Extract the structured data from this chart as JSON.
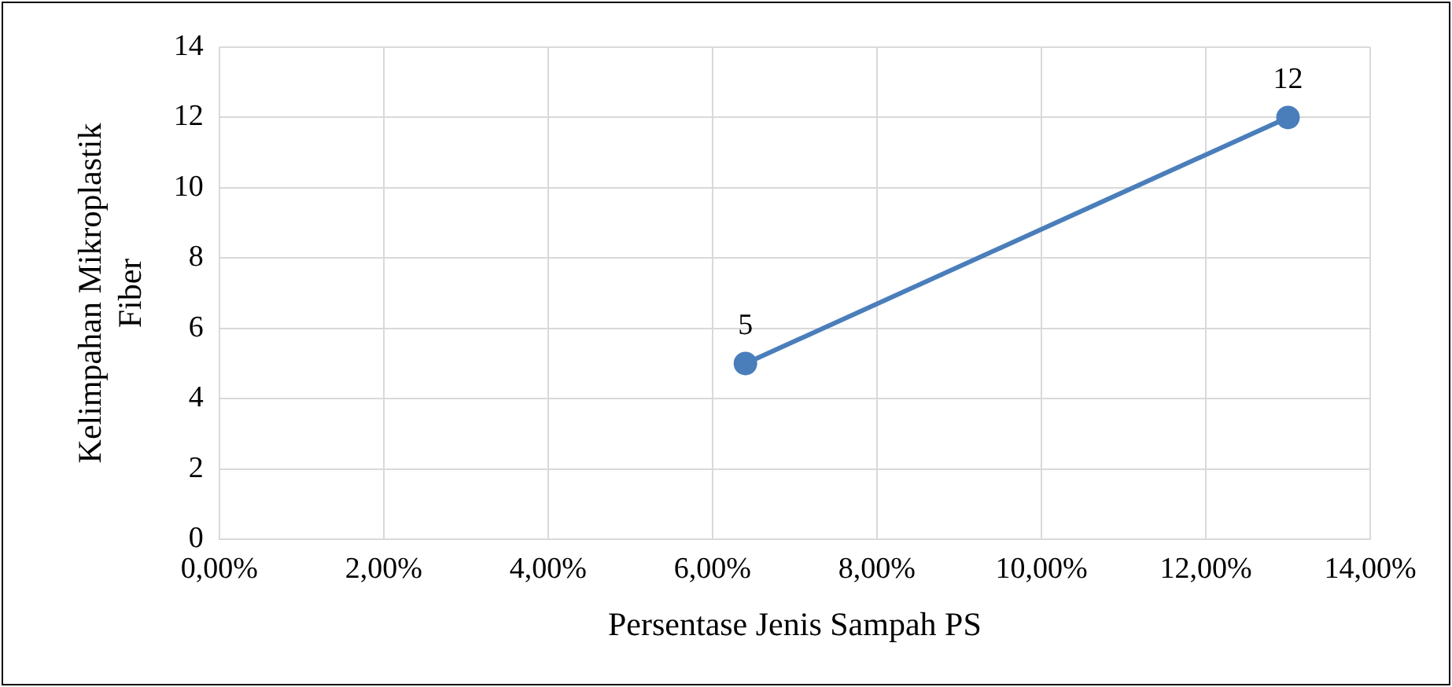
{
  "chart_data": {
    "type": "line",
    "xlabel": "Persentase Jenis Sampah PS",
    "ylabel": "Kelimpahan Mikroplastik Fiber",
    "x": [
      6.4,
      13.0
    ],
    "series": [
      {
        "color": "#4a7ebb",
        "values": [
          5,
          12
        ]
      }
    ],
    "xlim": [
      0,
      14
    ],
    "xticks": [
      {
        "value": 0,
        "label": "0,00%"
      },
      {
        "value": 2,
        "label": "2,00%"
      },
      {
        "value": 4,
        "label": "4,00%"
      },
      {
        "value": 6,
        "label": "6,00%"
      },
      {
        "value": 8,
        "label": "8,00%"
      },
      {
        "value": 10,
        "label": "10,00%"
      },
      {
        "value": 12,
        "label": "12,00%"
      },
      {
        "value": 14,
        "label": "14,00%"
      }
    ],
    "ylim": [
      0,
      14
    ],
    "yticks": [
      0,
      2,
      4,
      6,
      8,
      10,
      12,
      14
    ],
    "grid": true,
    "legend": false,
    "marker": "circle",
    "line_style": "solid",
    "data_labels": true
  }
}
